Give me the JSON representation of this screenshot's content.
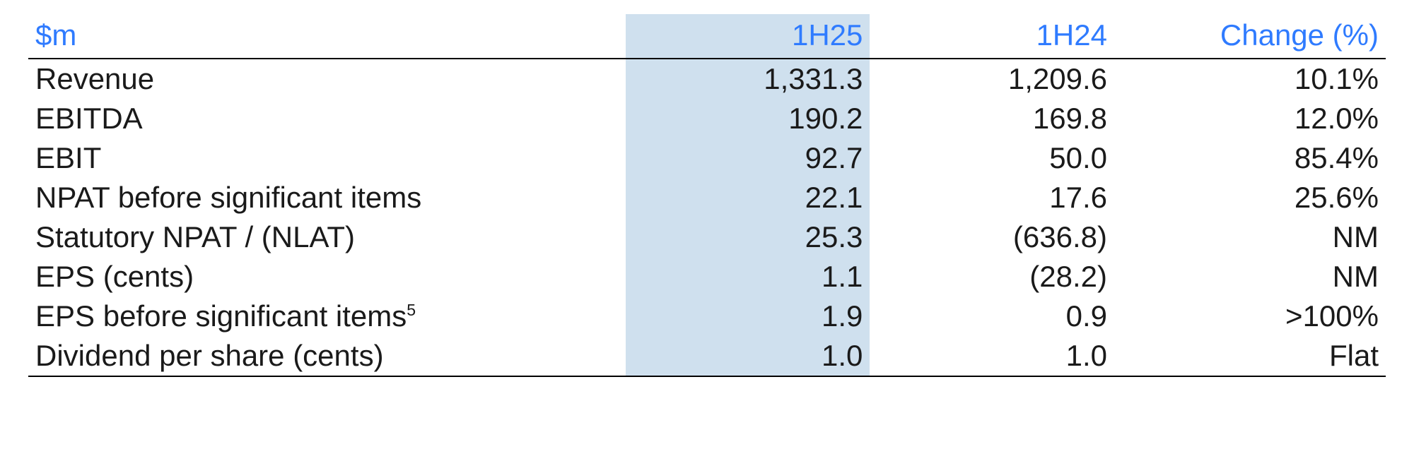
{
  "table": {
    "type": "table",
    "background_color": "#ffffff",
    "highlight_color": "#cfe0ee",
    "header_text_color": "#2f7bff",
    "body_text_color": "#1a1a1a",
    "rule_color": "#000000",
    "font_size_pt": 30,
    "font_family": "sans-serif",
    "column_widths_pct": [
      44,
      18,
      18,
      20
    ],
    "column_alignments": [
      "left",
      "right",
      "right",
      "right"
    ],
    "highlighted_column": 1,
    "columns": [
      "$m",
      "1H25",
      "1H24",
      "Change (%)"
    ],
    "rows": [
      {
        "metric": "Revenue",
        "h25": "1,331.3",
        "h24": "1,209.6",
        "change": "10.1%"
      },
      {
        "metric": "EBITDA",
        "h25": "190.2",
        "h24": "169.8",
        "change": "12.0%"
      },
      {
        "metric": "EBIT",
        "h25": "92.7",
        "h24": "50.0",
        "change": "85.4%"
      },
      {
        "metric": "NPAT before significant items",
        "h25": "22.1",
        "h24": "17.6",
        "change": "25.6%"
      },
      {
        "metric": "Statutory NPAT / (NLAT)",
        "h25": "25.3",
        "h24": "(636.8)",
        "change": "NM"
      },
      {
        "metric": "EPS (cents)",
        "h25": "1.1",
        "h24": "(28.2)",
        "change": "NM"
      },
      {
        "metric": "EPS before significant items",
        "footnote": "5",
        "h25": "1.9",
        "h24": "0.9",
        "change": ">100%"
      },
      {
        "metric": "Dividend per share (cents)",
        "h25": "1.0",
        "h24": "1.0",
        "change": "Flat"
      }
    ]
  }
}
